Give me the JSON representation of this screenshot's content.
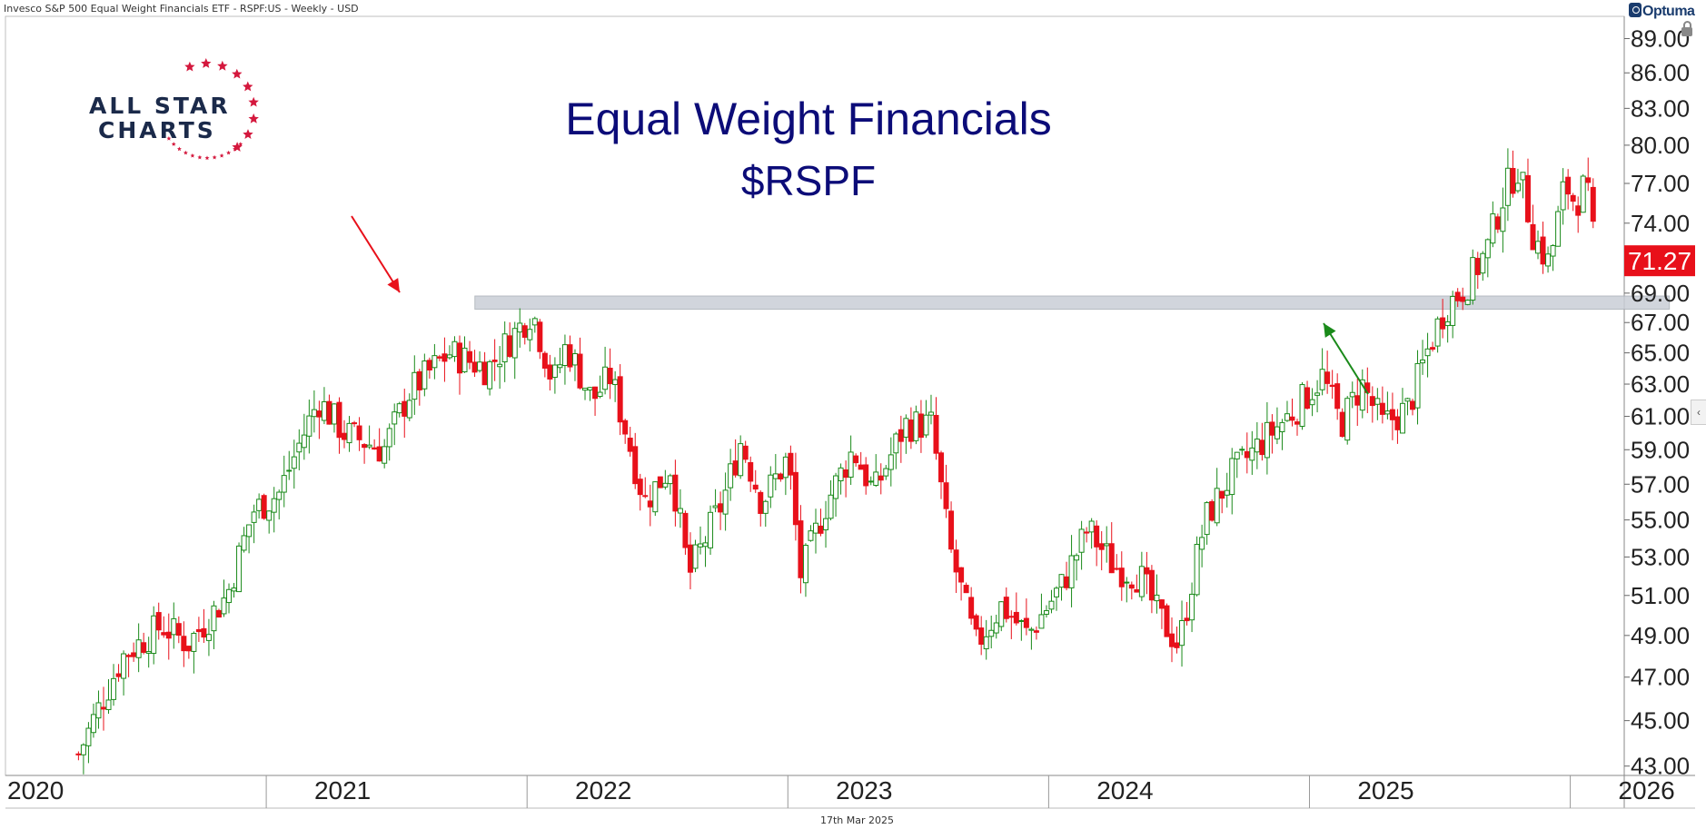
{
  "header": {
    "title": "Invesco S&P 500 Equal Weight Financials ETF - RSPF:US - Weekly - USD",
    "brand": "Optuma",
    "date": "17th Mar 2025"
  },
  "logo": {
    "line1": "ALL STAR",
    "line2": "CHARTS"
  },
  "colors": {
    "up": "#1a8a1a",
    "down": "#e8101a",
    "title": "#0c0c78",
    "band": "#c9ced6",
    "price_tag": "#e8101a"
  },
  "chart_data": {
    "type": "candlestick",
    "title": "Equal Weight Financials",
    "subtitle": "$RSPF",
    "timeframe": "Weekly",
    "y_scale": "log",
    "ylim": [
      42.6,
      91.0
    ],
    "xlim": [
      2020.0,
      2026.2
    ],
    "y_ticks": [
      "89.00",
      "86.00",
      "83.00",
      "80.00",
      "77.00",
      "74.00",
      "71.00",
      "69.00",
      "67.00",
      "65.00",
      "63.00",
      "61.00",
      "59.00",
      "57.00",
      "55.00",
      "53.00",
      "51.00",
      "49.00",
      "47.00",
      "45.00",
      "43.00"
    ],
    "x_ticks": [
      "2020",
      "2021",
      "2022",
      "2023",
      "2024",
      "2025",
      "2026"
    ],
    "last_price": "71.27",
    "resistance_band": [
      67.9,
      68.8
    ],
    "annotations": [
      {
        "type": "arrow",
        "color": "red",
        "points_to": "2021 high near 68"
      },
      {
        "type": "arrow",
        "color": "green",
        "points_to": "2025 retest near 68"
      }
    ],
    "anchors": [
      {
        "t": 2020.28,
        "p": 43.5
      },
      {
        "t": 2020.45,
        "p": 48
      },
      {
        "t": 2020.6,
        "p": 49.5
      },
      {
        "t": 2020.7,
        "p": 48.6
      },
      {
        "t": 2020.85,
        "p": 51
      },
      {
        "t": 2020.95,
        "p": 55.5
      },
      {
        "t": 2021.05,
        "p": 56.5
      },
      {
        "t": 2021.2,
        "p": 62
      },
      {
        "t": 2021.3,
        "p": 60
      },
      {
        "t": 2021.45,
        "p": 59
      },
      {
        "t": 2021.55,
        "p": 62.5
      },
      {
        "t": 2021.7,
        "p": 65
      },
      {
        "t": 2021.85,
        "p": 64
      },
      {
        "t": 2022.02,
        "p": 67.8
      },
      {
        "t": 2022.1,
        "p": 63
      },
      {
        "t": 2022.15,
        "p": 65.5
      },
      {
        "t": 2022.25,
        "p": 62
      },
      {
        "t": 2022.32,
        "p": 63.5
      },
      {
        "t": 2022.45,
        "p": 56
      },
      {
        "t": 2022.55,
        "p": 58
      },
      {
        "t": 2022.62,
        "p": 52
      },
      {
        "t": 2022.75,
        "p": 56
      },
      {
        "t": 2022.82,
        "p": 59.5
      },
      {
        "t": 2022.9,
        "p": 56
      },
      {
        "t": 2023.0,
        "p": 58.5
      },
      {
        "t": 2023.05,
        "p": 52
      },
      {
        "t": 2023.15,
        "p": 56
      },
      {
        "t": 2023.25,
        "p": 59
      },
      {
        "t": 2023.33,
        "p": 56.5
      },
      {
        "t": 2023.45,
        "p": 60.5
      },
      {
        "t": 2023.55,
        "p": 60.5
      },
      {
        "t": 2023.62,
        "p": 53.5
      },
      {
        "t": 2023.72,
        "p": 48.5
      },
      {
        "t": 2023.82,
        "p": 50.5
      },
      {
        "t": 2023.92,
        "p": 49
      },
      {
        "t": 2024.05,
        "p": 51.5
      },
      {
        "t": 2024.15,
        "p": 54.5
      },
      {
        "t": 2024.25,
        "p": 52.5
      },
      {
        "t": 2024.35,
        "p": 52
      },
      {
        "t": 2024.42,
        "p": 50
      },
      {
        "t": 2024.5,
        "p": 48.5
      },
      {
        "t": 2024.6,
        "p": 55
      },
      {
        "t": 2024.7,
        "p": 57.5
      },
      {
        "t": 2024.82,
        "p": 59.5
      },
      {
        "t": 2024.95,
        "p": 61.5
      },
      {
        "t": 2025.05,
        "p": 63.5
      },
      {
        "t": 2025.12,
        "p": 60.5
      },
      {
        "t": 2025.2,
        "p": 63
      },
      {
        "t": 2025.28,
        "p": 60.5
      },
      {
        "t": 2025.38,
        "p": 61.5
      },
      {
        "t": 2025.45,
        "p": 65
      },
      {
        "t": 2025.52,
        "p": 68
      },
      {
        "t": 2025.6,
        "p": 69.5
      },
      {
        "t": 2025.68,
        "p": 72
      },
      {
        "t": 2025.75,
        "p": 76.5
      },
      {
        "t": 2025.8,
        "p": 78.2
      },
      {
        "t": 2025.86,
        "p": 73
      },
      {
        "t": 2025.92,
        "p": 71
      },
      {
        "t": 2025.98,
        "p": 77
      },
      {
        "t": 2026.02,
        "p": 75.5
      },
      {
        "t": 2026.06,
        "p": 77
      },
      {
        "t": 2026.1,
        "p": 71.27
      }
    ]
  }
}
